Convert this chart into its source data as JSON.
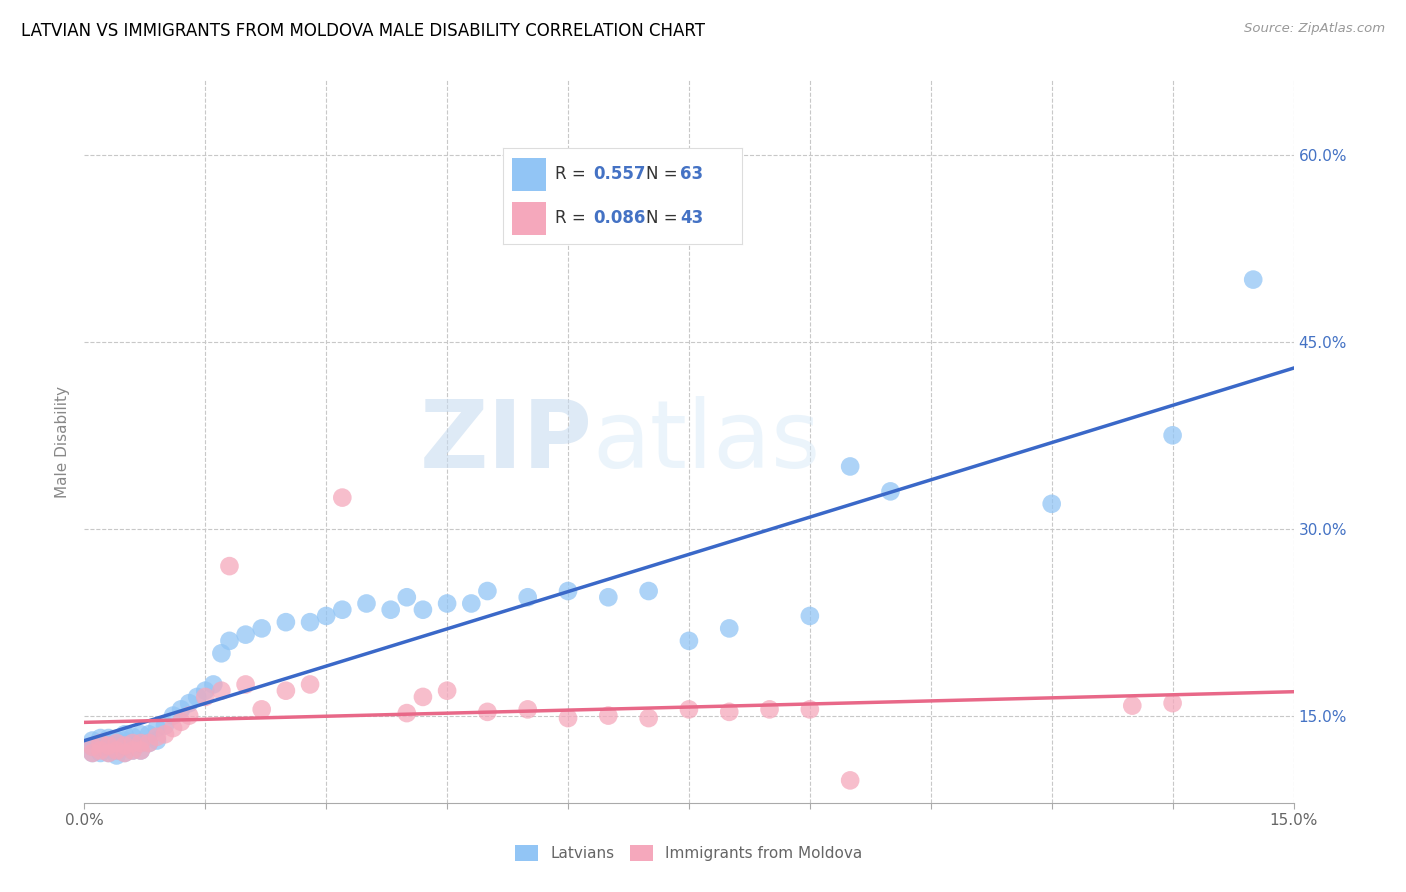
{
  "title": "LATVIAN VS IMMIGRANTS FROM MOLDOVA MALE DISABILITY CORRELATION CHART",
  "source": "Source: ZipAtlas.com",
  "ylabel": "Male Disability",
  "xlim": [
    0.0,
    0.15
  ],
  "ylim": [
    0.08,
    0.66
  ],
  "xtick_positions": [
    0.0,
    0.015,
    0.03,
    0.045,
    0.06,
    0.075,
    0.09,
    0.105,
    0.12,
    0.135,
    0.15
  ],
  "xtick_labels_show": {
    "0.0": "0.0%",
    "0.15": "15.0%"
  },
  "yticks_right": [
    0.15,
    0.3,
    0.45,
    0.6
  ],
  "ytick_labels_right": [
    "15.0%",
    "30.0%",
    "45.0%",
    "60.0%"
  ],
  "legend_R_blue": "0.557",
  "legend_N_blue": "63",
  "legend_R_pink": "0.086",
  "legend_N_pink": "43",
  "blue_color": "#92C5F5",
  "pink_color": "#F5A8BC",
  "blue_line_color": "#3A68C8",
  "pink_line_color": "#E86888",
  "grid_color": "#C8C8C8",
  "watermark_zip": "ZIP",
  "watermark_atlas": "atlas",
  "latvian_x": [
    0.001,
    0.001,
    0.001,
    0.002,
    0.002,
    0.002,
    0.002,
    0.003,
    0.003,
    0.003,
    0.003,
    0.004,
    0.004,
    0.004,
    0.004,
    0.005,
    0.005,
    0.005,
    0.005,
    0.006,
    0.006,
    0.006,
    0.007,
    0.007,
    0.007,
    0.008,
    0.008,
    0.009,
    0.009,
    0.01,
    0.011,
    0.012,
    0.013,
    0.014,
    0.015,
    0.016,
    0.017,
    0.018,
    0.02,
    0.022,
    0.025,
    0.028,
    0.03,
    0.032,
    0.035,
    0.038,
    0.04,
    0.042,
    0.045,
    0.048,
    0.05,
    0.055,
    0.06,
    0.065,
    0.07,
    0.075,
    0.08,
    0.09,
    0.095,
    0.1,
    0.12,
    0.135,
    0.145
  ],
  "latvian_y": [
    0.12,
    0.125,
    0.13,
    0.12,
    0.125,
    0.128,
    0.132,
    0.12,
    0.125,
    0.128,
    0.132,
    0.118,
    0.122,
    0.126,
    0.13,
    0.12,
    0.125,
    0.13,
    0.135,
    0.122,
    0.128,
    0.133,
    0.122,
    0.128,
    0.135,
    0.128,
    0.135,
    0.13,
    0.14,
    0.142,
    0.15,
    0.155,
    0.16,
    0.165,
    0.17,
    0.175,
    0.2,
    0.21,
    0.215,
    0.22,
    0.225,
    0.225,
    0.23,
    0.235,
    0.24,
    0.235,
    0.245,
    0.235,
    0.24,
    0.24,
    0.25,
    0.245,
    0.25,
    0.245,
    0.25,
    0.21,
    0.22,
    0.23,
    0.35,
    0.33,
    0.32,
    0.375,
    0.5
  ],
  "moldova_x": [
    0.001,
    0.001,
    0.002,
    0.002,
    0.003,
    0.003,
    0.004,
    0.004,
    0.005,
    0.005,
    0.006,
    0.006,
    0.007,
    0.007,
    0.008,
    0.009,
    0.01,
    0.011,
    0.012,
    0.013,
    0.015,
    0.017,
    0.018,
    0.02,
    0.022,
    0.025,
    0.028,
    0.032,
    0.04,
    0.042,
    0.045,
    0.05,
    0.055,
    0.06,
    0.065,
    0.07,
    0.075,
    0.08,
    0.085,
    0.09,
    0.095,
    0.13,
    0.135
  ],
  "moldova_y": [
    0.12,
    0.125,
    0.122,
    0.128,
    0.12,
    0.126,
    0.122,
    0.128,
    0.12,
    0.126,
    0.122,
    0.128,
    0.122,
    0.128,
    0.128,
    0.133,
    0.135,
    0.14,
    0.145,
    0.15,
    0.165,
    0.17,
    0.27,
    0.175,
    0.155,
    0.17,
    0.175,
    0.325,
    0.152,
    0.165,
    0.17,
    0.153,
    0.155,
    0.148,
    0.15,
    0.148,
    0.155,
    0.153,
    0.155,
    0.155,
    0.098,
    0.158,
    0.16
  ]
}
